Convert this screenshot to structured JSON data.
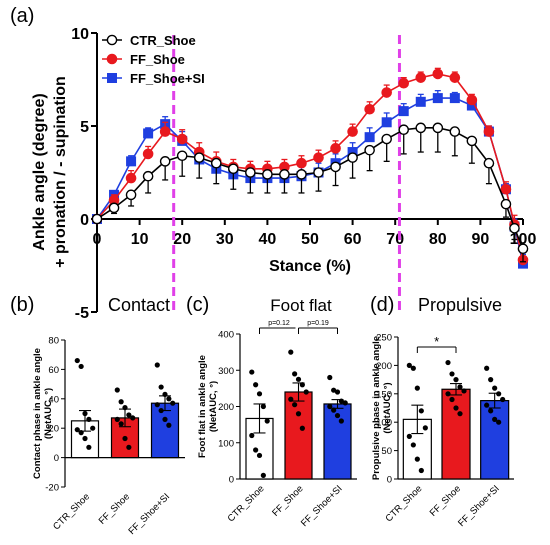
{
  "chart_data": [
    {
      "panel": "(a)",
      "type": "line",
      "xlabel": "Stance (%)",
      "ylabel": [
        "Ankle angle (degree)",
        "+ pronation / - supination"
      ],
      "xlim": [
        0,
        100
      ],
      "ylim": [
        -5,
        10
      ],
      "x_ticks": [
        0,
        10,
        20,
        30,
        40,
        50,
        60,
        70,
        80,
        90,
        100
      ],
      "y_ticks": [
        -5,
        0,
        5,
        10
      ],
      "legend_position": "top-left",
      "annotations": {
        "dashed_lines_x": [
          18,
          71
        ],
        "dashed_line_color": "#e040e8"
      },
      "x": [
        0,
        4,
        8,
        12,
        16,
        20,
        24,
        28,
        32,
        36,
        40,
        44,
        48,
        52,
        56,
        60,
        64,
        68,
        72,
        76,
        80,
        84,
        88,
        92,
        96,
        98,
        100
      ],
      "series": [
        {
          "name": "CTR_Shoe",
          "color": "#000000",
          "fill": "#ffffff",
          "marker": "circle",
          "values": [
            0,
            0.6,
            1.3,
            2.3,
            3.1,
            3.4,
            3.3,
            3.0,
            2.7,
            2.5,
            2.4,
            2.4,
            2.4,
            2.5,
            2.8,
            3.3,
            3.7,
            4.3,
            4.8,
            4.9,
            4.9,
            4.7,
            4.2,
            3.0,
            0.8,
            -0.5,
            -1.6
          ],
          "err": [
            0,
            0.3,
            0.6,
            0.9,
            1.0,
            1.1,
            1.1,
            1.1,
            1.1,
            1.1,
            1.0,
            1.0,
            1.0,
            1.0,
            1.0,
            1.1,
            1.1,
            1.2,
            1.3,
            1.3,
            1.3,
            1.3,
            1.2,
            1.1,
            0.7,
            0.6,
            0.7
          ]
        },
        {
          "name": "FF_Shoe",
          "color": "#e8191e",
          "fill": "#e8191e",
          "marker": "circle",
          "values": [
            0,
            1.0,
            2.2,
            3.5,
            4.7,
            4.3,
            3.6,
            3.1,
            2.8,
            2.7,
            2.7,
            2.8,
            3.0,
            3.3,
            3.8,
            4.7,
            5.9,
            6.8,
            7.3,
            7.6,
            7.8,
            7.6,
            6.4,
            4.7,
            1.6,
            -0.3,
            -2.2
          ],
          "err": [
            0,
            0.3,
            0.4,
            0.4,
            0.5,
            0.5,
            0.5,
            0.5,
            0.4,
            0.4,
            0.4,
            0.4,
            0.4,
            0.4,
            0.4,
            0.4,
            0.4,
            0.4,
            0.3,
            0.3,
            0.3,
            0.3,
            0.3,
            0.3,
            0.4,
            0.5,
            0.6
          ]
        },
        {
          "name": "FF_Shoe+SI",
          "color": "#1f3fe0",
          "fill": "#1f3fe0",
          "marker": "square",
          "values": [
            0,
            1.3,
            3.1,
            4.6,
            5.1,
            4.2,
            3.2,
            2.7,
            2.4,
            2.2,
            2.2,
            2.2,
            2.3,
            2.5,
            3.0,
            3.6,
            4.4,
            5.2,
            5.8,
            6.3,
            6.5,
            6.5,
            6.1,
            4.7,
            1.6,
            -0.4,
            -2.4
          ],
          "err": [
            0,
            0.2,
            0.3,
            0.3,
            0.4,
            0.5,
            0.5,
            0.5,
            0.5,
            0.5,
            0.5,
            0.5,
            0.5,
            0.5,
            0.5,
            0.5,
            0.5,
            0.5,
            0.4,
            0.4,
            0.4,
            0.3,
            0.3,
            0.3,
            0.3,
            0.4,
            0.5
          ]
        }
      ]
    },
    {
      "panel": "(b)",
      "type": "bar",
      "title": "Contact",
      "ylabel": [
        "Contact phase in ankle angle",
        "(NetAUC, °)"
      ],
      "ylim": [
        -20,
        80
      ],
      "y_ticks": [
        -20,
        0,
        20,
        40,
        60,
        80
      ],
      "categories": [
        "CTR_Shoe",
        "FF_Shoe",
        "FF_Shoe+SI"
      ],
      "values": [
        25,
        27,
        37
      ],
      "err": [
        7,
        6,
        5
      ],
      "colors": [
        "#ffffff",
        "#e8191e",
        "#1f3fe0"
      ],
      "points": [
        [
          66,
          62,
          30,
          26,
          20,
          19,
          17,
          13,
          7
        ],
        [
          46,
          38,
          34,
          29,
          27,
          26,
          23,
          13,
          7
        ],
        [
          63,
          48,
          43,
          40,
          37,
          36,
          32,
          26,
          22
        ]
      ]
    },
    {
      "panel": "(c)",
      "type": "bar",
      "title": "Foot flat",
      "ylabel": [
        "Foot flat in ankle angle",
        "(NetAUC, °)"
      ],
      "ylim": [
        0,
        400
      ],
      "y_ticks": [
        0,
        100,
        200,
        300,
        400
      ],
      "categories": [
        "CTR_Shoe",
        "FF_Shoe",
        "FF_Shoe+SI"
      ],
      "values": [
        167,
        240,
        207
      ],
      "err": [
        40,
        25,
        12
      ],
      "colors": [
        "#ffffff",
        "#e8191e",
        "#1f3fe0"
      ],
      "points": [
        [
          295,
          260,
          235,
          200,
          160,
          120,
          80,
          65,
          10
        ],
        [
          350,
          290,
          275,
          260,
          240,
          220,
          205,
          180,
          140
        ],
        [
          280,
          245,
          240,
          215,
          210,
          200,
          190,
          175,
          160
        ]
      ],
      "sig": [
        {
          "from": 0,
          "to": 1,
          "label": "p=0.12"
        },
        {
          "from": 1,
          "to": 2,
          "label": "p=0.19"
        }
      ]
    },
    {
      "panel": "(d)",
      "type": "bar",
      "title": "Propulsive",
      "ylabel": [
        "Propulsive phase in ankle angle",
        "(NetAUC, °)"
      ],
      "ylim": [
        0,
        250
      ],
      "y_ticks": [
        0,
        50,
        100,
        150,
        200,
        250
      ],
      "categories": [
        "CTR_Shoe",
        "FF_Shoe",
        "FF_Shoe+SI"
      ],
      "values": [
        105,
        158,
        138
      ],
      "err": [
        25,
        10,
        13
      ],
      "colors": [
        "#ffffff",
        "#e8191e",
        "#1f3fe0"
      ],
      "points": [
        [
          200,
          195,
          160,
          120,
          90,
          75,
          60,
          35,
          15
        ],
        [
          205,
          185,
          175,
          162,
          155,
          150,
          140,
          125,
          115
        ],
        [
          195,
          175,
          160,
          150,
          140,
          130,
          120,
          105,
          100
        ]
      ],
      "sig": [
        {
          "from": 0,
          "to": 1,
          "label": "*"
        }
      ]
    }
  ]
}
